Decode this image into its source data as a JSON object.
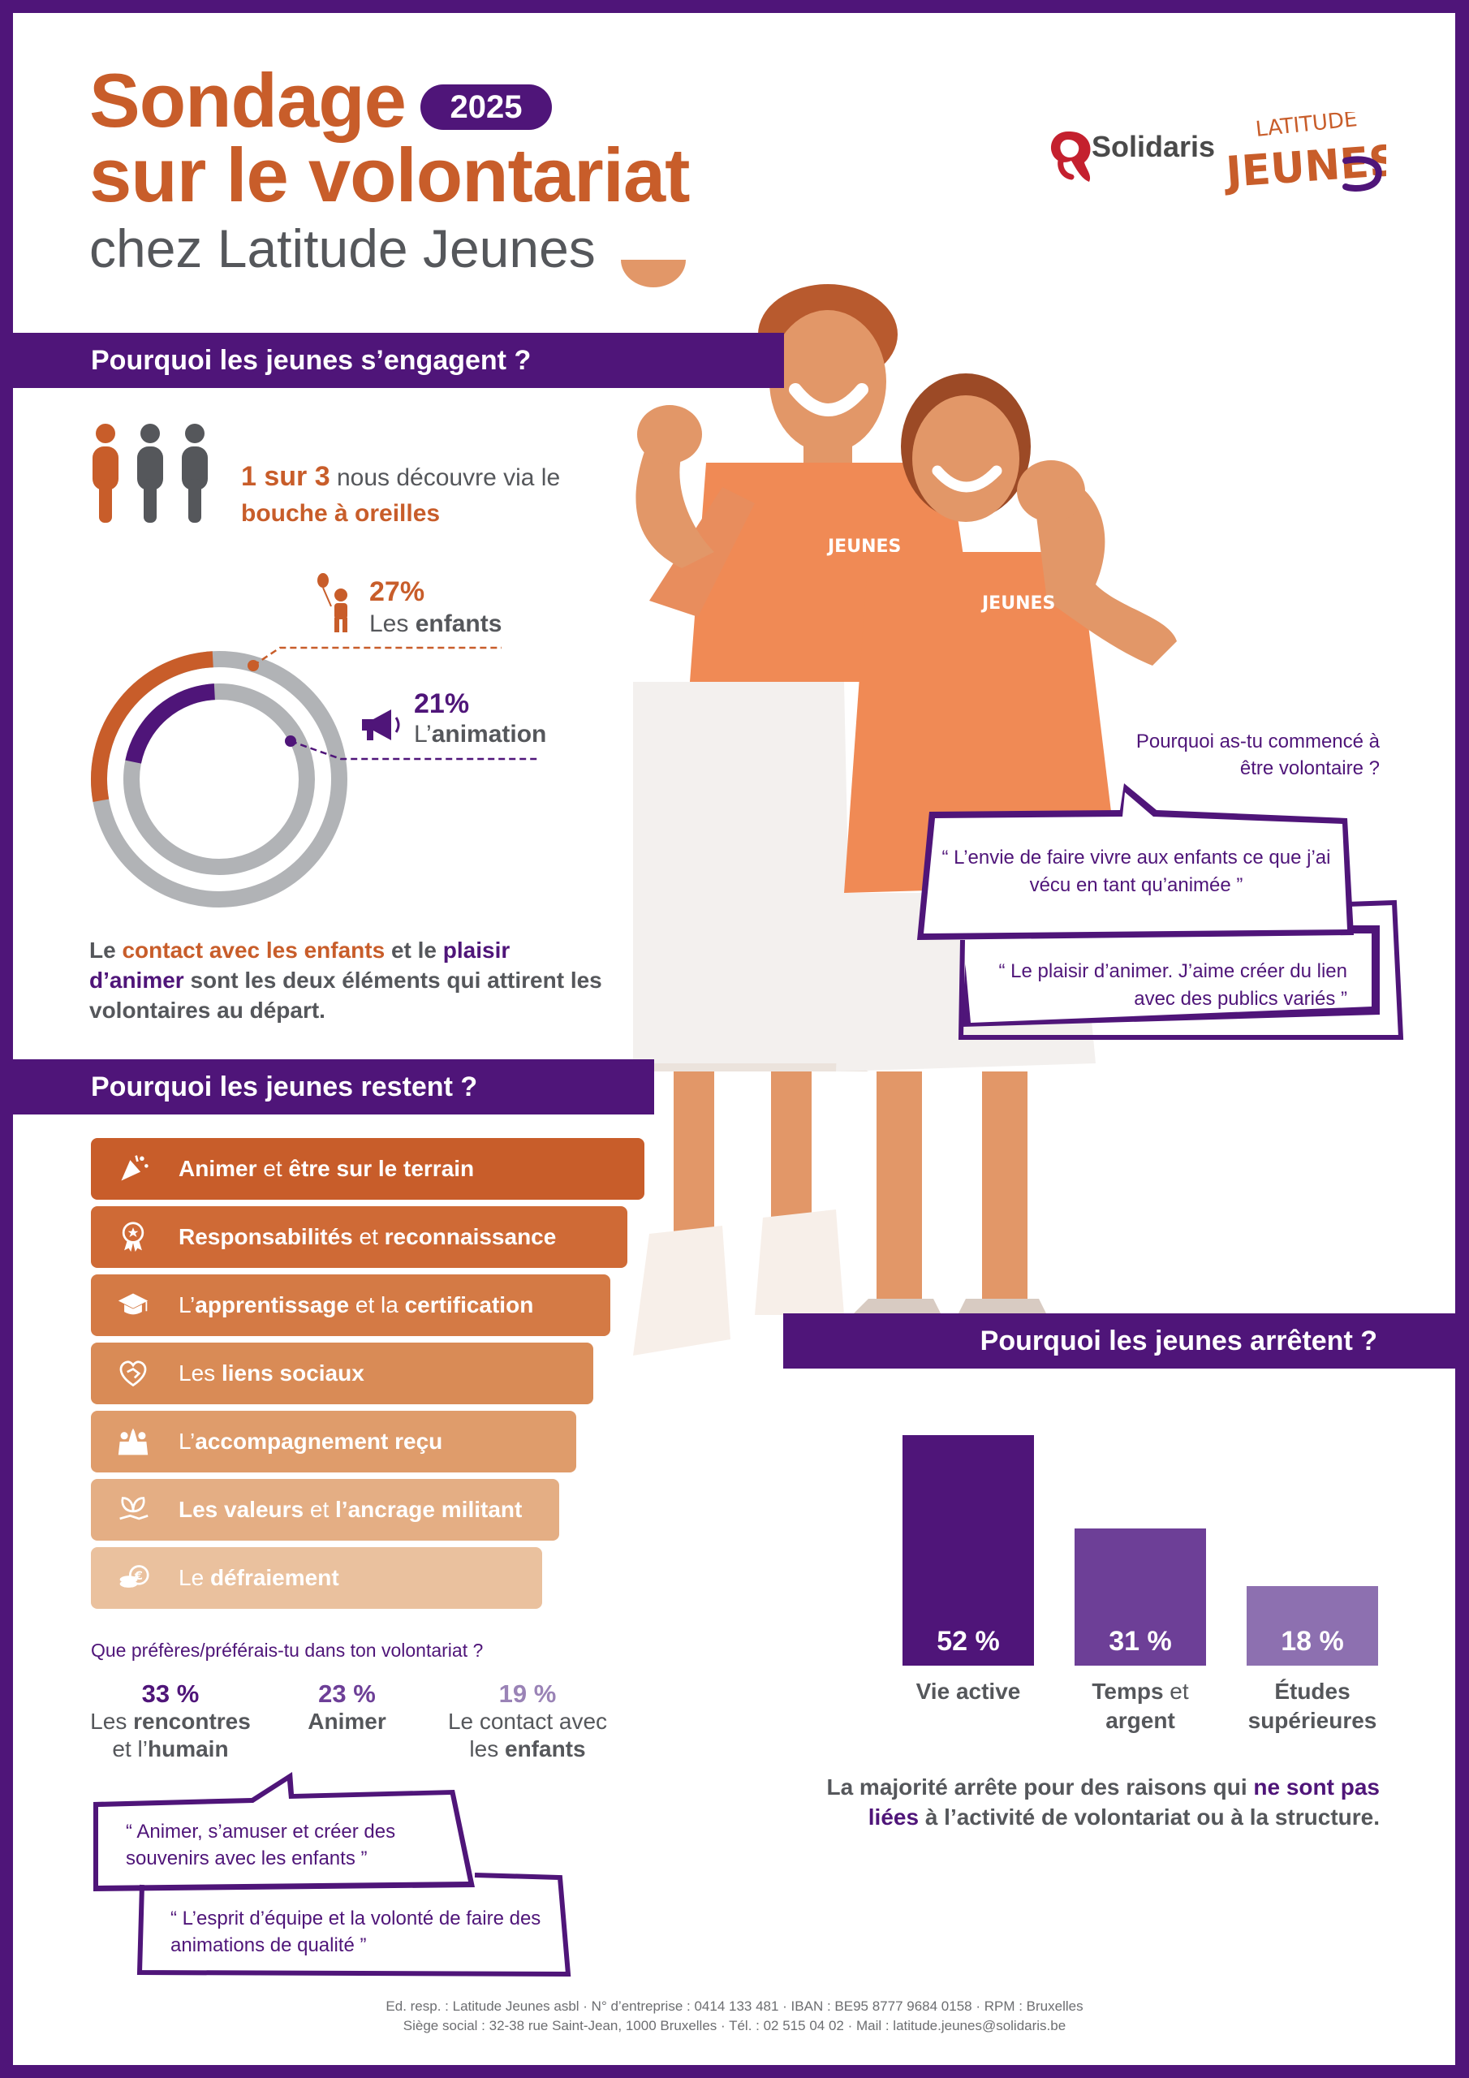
{
  "header": {
    "title_line1": "Sondage",
    "title_line2": "sur le volontariat",
    "year": "2025",
    "subtitle": "chez Latitude Jeunes"
  },
  "logos": {
    "solidaris": "Solidaris",
    "latitude_jeunes": "LATITUDE JEUNES"
  },
  "colors": {
    "purple": "#4f1579",
    "orange": "#c85d2a",
    "grey": "#55575b",
    "light_purple": "#9a83b6"
  },
  "section1": {
    "heading": "Pourquoi les jeunes s’engagent ?",
    "word_of_mouth": {
      "highlight": "1 sur 3",
      "text": " nous découvre via le ",
      "highlight2": "bouche à oreilles"
    },
    "stats": [
      {
        "pct": 27,
        "pct_label": "27%",
        "label_pre": "Les ",
        "label_bold": "enfants",
        "icon": "child-balloon-icon"
      },
      {
        "pct": 21,
        "pct_label": "21%",
        "label_pre": "L’",
        "label_bold": "animation",
        "icon": "megaphone-icon"
      }
    ],
    "summary": {
      "p1": "Le ",
      "h1": "contact avec les enfants",
      "p2": " et le ",
      "h2": "plaisir d’animer",
      "p3": " sont les deux éléments qui attirent les volontaires au départ."
    }
  },
  "quotes_start": {
    "question": "Pourquoi as-tu commencé à être volontaire ?",
    "q1": "“ L’envie de faire vivre aux enfants ce que j’ai vécu en tant qu’animée ”",
    "q2": "“ Le plaisir d’animer. J’aime créer du lien avec des publics variés ”"
  },
  "section2": {
    "heading": "Pourquoi les jeunes restent ?",
    "reasons": [
      {
        "parts": [
          {
            "t": "Animer",
            "b": true
          },
          {
            "t": " et ",
            "b": false
          },
          {
            "t": "être sur le terrain",
            "b": true
          }
        ],
        "icon": "party-popper-icon",
        "color": "#c85d2a"
      },
      {
        "parts": [
          {
            "t": "Responsabilités",
            "b": true
          },
          {
            "t": " et ",
            "b": false
          },
          {
            "t": "reconnaissance",
            "b": true
          }
        ],
        "icon": "award-rosette-icon",
        "color": "#cf6a36"
      },
      {
        "parts": [
          {
            "t": "L’",
            "b": false
          },
          {
            "t": "apprentissage",
            "b": true
          },
          {
            "t": " et la ",
            "b": false
          },
          {
            "t": "certification",
            "b": true
          }
        ],
        "icon": "graduation-cap-icon",
        "color": "#d47a45"
      },
      {
        "parts": [
          {
            "t": "Les ",
            "b": false
          },
          {
            "t": "liens sociaux",
            "b": true
          }
        ],
        "icon": "heart-handshake-icon",
        "color": "#d98b56"
      },
      {
        "parts": [
          {
            "t": "L’",
            "b": false
          },
          {
            "t": "accompagnement reçu",
            "b": true
          }
        ],
        "icon": "people-highfive-icon",
        "color": "#df9c6b"
      },
      {
        "parts": [
          {
            "t": "Les valeurs",
            "b": true
          },
          {
            "t": " et ",
            "b": false
          },
          {
            "t": "l’ancrage militant",
            "b": true
          }
        ],
        "icon": "leaf-hand-icon",
        "color": "#e4ae84"
      },
      {
        "parts": [
          {
            "t": "Le ",
            "b": false
          },
          {
            "t": "défraiement",
            "b": true
          }
        ],
        "icon": "coins-euro-icon",
        "color": "#eac19e"
      }
    ],
    "preference_question": "Que préfères/préférais-tu dans ton volontariat ?",
    "preferences": [
      {
        "pct": "33 %",
        "l1_pre": "Les ",
        "l1_bold": "rencontres",
        "l2_pre": "et l’",
        "l2_bold": "humain",
        "color": "#4f1579"
      },
      {
        "pct": "23 %",
        "l1_pre": "",
        "l1_bold": "Animer",
        "l2_pre": "",
        "l2_bold": "",
        "color": "#6d3f97"
      },
      {
        "pct": "19 %",
        "l1_pre": "Le contact avec",
        "l1_bold": "",
        "l2_pre": "les ",
        "l2_bold": "enfants",
        "color": "#9a83b6"
      }
    ],
    "qa": "“ Animer, s’amuser et créer des souvenirs avec les enfants ”",
    "qb": "“ L’esprit d’équipe et la volonté de faire des animations de qualité ”"
  },
  "section3": {
    "heading": "Pourquoi les jeunes arrêtent ?",
    "note": {
      "p1": "La majorité arrête pour des raisons qui ",
      "h1": "ne sont pas liées",
      "p2": " à l’activité de volontariat ou à la structure."
    }
  },
  "chart_data": {
    "type": "bar",
    "categories": [
      "Vie active",
      "Temps et argent",
      "Études supérieures"
    ],
    "category_labels": [
      {
        "l1_b": "Vie active",
        "l1": "",
        "l2_b": ""
      },
      {
        "l1_b": "Temps",
        "l1": " et",
        "l2_b": "argent"
      },
      {
        "l1_b": "Études",
        "l1": "",
        "l2_b": "supérieures"
      }
    ],
    "values": [
      52,
      31,
      18
    ],
    "value_labels": [
      "52 %",
      "31 %",
      "18 %"
    ],
    "colors": [
      "#4f1579",
      "#6d3f97",
      "#8d70b0"
    ],
    "ylim": [
      0,
      55
    ],
    "grid": false
  },
  "footer": {
    "line1": "Ed. resp. : Latitude Jeunes asbl · N° d’entreprise : 0414 133 481 · IBAN : BE95 8777 9684 0158 · RPM : Bruxelles",
    "line2": "Siège social : 32-38 rue Saint-Jean, 1000 Bruxelles · Tél. : 02 515 04 02 · Mail : latitude.jeunes@solidaris.be"
  }
}
